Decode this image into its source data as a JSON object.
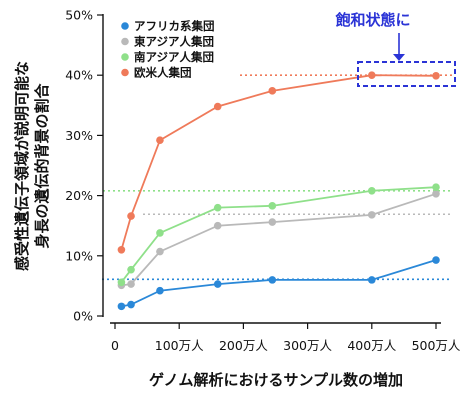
{
  "chart_data": {
    "type": "line",
    "xlabel": "ゲノム解析におけるサンプル数の増加",
    "ylabel_lines": [
      "感受性遺伝子領域が説明可能な",
      "身長の遺伝的背景の割合"
    ],
    "x_ticks": [
      {
        "value": 0,
        "label": "0"
      },
      {
        "value": 100,
        "label": "100万人"
      },
      {
        "value": 200,
        "label": "200万人"
      },
      {
        "value": 300,
        "label": "300万人"
      },
      {
        "value": 400,
        "label": "400万人"
      },
      {
        "value": 500,
        "label": "500万人"
      }
    ],
    "y_ticks": [
      {
        "value": 0,
        "label": "0%"
      },
      {
        "value": 10,
        "label": "10%"
      },
      {
        "value": 20,
        "label": "20%"
      },
      {
        "value": 30,
        "label": "30%"
      },
      {
        "value": 40,
        "label": "40%"
      },
      {
        "value": 50,
        "label": "50%"
      }
    ],
    "xlim": [
      0,
      500
    ],
    "ylim": [
      0,
      50
    ],
    "legend_position": "top-left",
    "series": [
      {
        "name": "アフリカ系集団",
        "color": "#2a88d8",
        "x": [
          10,
          25,
          70,
          160,
          245,
          400,
          500
        ],
        "y": [
          1.6,
          1.9,
          4.2,
          5.3,
          6.0,
          6.0,
          9.3
        ],
        "plateau": 6.1
      },
      {
        "name": "東アジア人集団",
        "color": "#b9b9b9",
        "x": [
          10,
          25,
          70,
          160,
          245,
          400,
          500
        ],
        "y": [
          5.1,
          5.3,
          10.7,
          15.0,
          15.6,
          16.8,
          20.3
        ],
        "plateau": 16.9
      },
      {
        "name": "南アジア人集団",
        "color": "#8fe08a",
        "x": [
          10,
          25,
          70,
          160,
          245,
          400,
          500
        ],
        "y": [
          5.6,
          7.7,
          13.8,
          18.0,
          18.3,
          20.8,
          21.4
        ],
        "plateau": 20.8
      },
      {
        "name": "欧米人集団",
        "color": "#ef7a5a",
        "x": [
          10,
          25,
          70,
          160,
          245,
          400,
          500
        ],
        "y": [
          11.0,
          16.6,
          29.2,
          34.8,
          37.4,
          40.0,
          39.9
        ],
        "plateau": 40.0
      }
    ],
    "annotation": {
      "text": "飽和状態に",
      "color": "#2b34d6"
    }
  }
}
